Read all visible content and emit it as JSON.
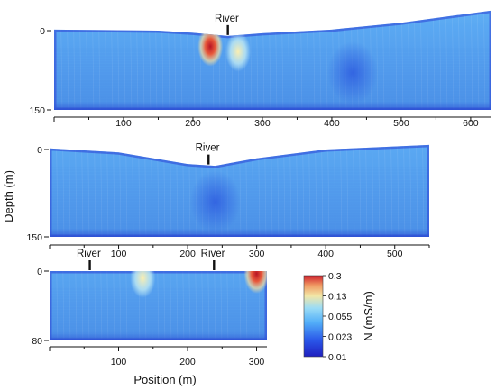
{
  "colors": {
    "low": "#1f2cd0",
    "mid": "#56b6ff",
    "high_mid": "#f4e69a",
    "high": "#d6202a",
    "axis": "#111111"
  },
  "figure": {
    "ylabel": "Depth (m)",
    "xlabel": "Position (m)"
  },
  "colorbar": {
    "label": "N (mS/m)",
    "ticks": [
      "0.3",
      "0.13",
      "0.055",
      "0.023",
      "0.01"
    ]
  },
  "chart_data": [
    {
      "type": "heatmap",
      "panel": "top",
      "annotations": [
        {
          "text": "River",
          "x": 250
        }
      ],
      "x_ticks": [
        "100",
        "200",
        "300",
        "400",
        "500",
        "600"
      ],
      "y_ticks": [
        "0",
        "150"
      ],
      "xlim": [
        0,
        630
      ],
      "ylim": [
        150,
        0
      ],
      "surface_depth": [
        {
          "x": 0,
          "y": -2
        },
        {
          "x": 150,
          "y": 0
        },
        {
          "x": 200,
          "y": 4
        },
        {
          "x": 250,
          "y": 10
        },
        {
          "x": 300,
          "y": 5
        },
        {
          "x": 400,
          "y": -2
        },
        {
          "x": 500,
          "y": -15
        },
        {
          "x": 630,
          "y": -38
        }
      ],
      "bottom_depth": 150,
      "anomalies": [
        {
          "x": 225,
          "y": 30,
          "level": "high"
        },
        {
          "x": 265,
          "y": 40,
          "level": "high_mid"
        },
        {
          "x": 430,
          "y": 80,
          "level": "low"
        }
      ]
    },
    {
      "type": "heatmap",
      "panel": "middle",
      "annotations": [
        {
          "text": "River",
          "x": 230
        }
      ],
      "x_ticks": [
        "100",
        "200",
        "300",
        "400",
        "500"
      ],
      "y_ticks": [
        "0",
        "150"
      ],
      "xlim": [
        0,
        550
      ],
      "ylim": [
        150,
        0
      ],
      "surface_depth": [
        {
          "x": 0,
          "y": -2
        },
        {
          "x": 100,
          "y": 5
        },
        {
          "x": 200,
          "y": 25
        },
        {
          "x": 240,
          "y": 28
        },
        {
          "x": 300,
          "y": 15
        },
        {
          "x": 400,
          "y": 0
        },
        {
          "x": 550,
          "y": -8
        }
      ],
      "bottom_depth": 150,
      "anomalies": [
        {
          "x": 240,
          "y": 90,
          "level": "low"
        }
      ]
    },
    {
      "type": "heatmap",
      "panel": "bottom",
      "annotations": [
        {
          "text": "River",
          "x": 58
        },
        {
          "text": "River",
          "x": 238
        }
      ],
      "x_ticks": [
        "100",
        "200",
        "300"
      ],
      "y_ticks": [
        "0",
        "80"
      ],
      "xlim": [
        0,
        315
      ],
      "ylim": [
        80,
        0
      ],
      "surface_depth": [
        {
          "x": 0,
          "y": 0
        },
        {
          "x": 315,
          "y": 0
        }
      ],
      "bottom_depth": 80,
      "anomalies": [
        {
          "x": 135,
          "y": 8,
          "level": "high_mid"
        },
        {
          "x": 300,
          "y": 3,
          "level": "high"
        }
      ]
    }
  ]
}
